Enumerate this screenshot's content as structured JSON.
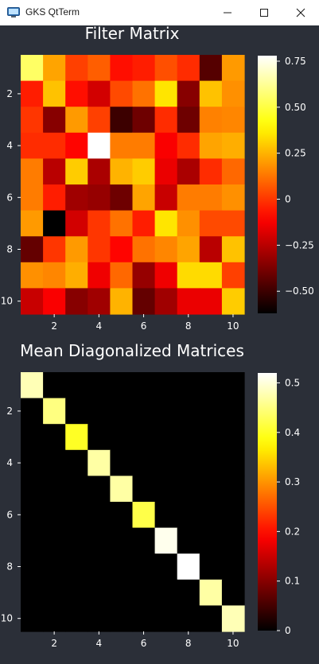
{
  "window": {
    "title": "GKS QtTerm",
    "icons": {
      "app": "terminal-app-icon",
      "minimize": "minimize-icon",
      "maximize": "maximize-icon",
      "close": "close-icon"
    }
  },
  "chart_data": [
    {
      "type": "heatmap",
      "title": "Filter Matrix",
      "xlabel": "",
      "ylabel": "",
      "x_ticks": [
        "2",
        "4",
        "6",
        "8",
        "10"
      ],
      "y_ticks": [
        "2",
        "4",
        "6",
        "8",
        "10"
      ],
      "colormap": "hot",
      "colorbar": {
        "min": -0.62,
        "max": 0.78,
        "ticks": [
          -0.5,
          -0.25,
          0,
          0.25,
          0.5,
          0.75
        ],
        "tick_labels": [
          "−0.50",
          "−0.25",
          "0",
          "0.25",
          "0.50",
          "0.75"
        ]
      },
      "matrix": [
        [
          0.55,
          0.22,
          0.02,
          0.08,
          -0.08,
          -0.05,
          0.05,
          -0.02,
          -0.45,
          0.2
        ],
        [
          -0.05,
          0.28,
          -0.08,
          -0.2,
          0.04,
          0.12,
          0.35,
          -0.35,
          0.28,
          0.18
        ],
        [
          0.0,
          -0.35,
          0.2,
          0.02,
          -0.5,
          -0.4,
          -0.02,
          -0.4,
          0.15,
          0.16
        ],
        [
          -0.02,
          -0.02,
          -0.1,
          0.78,
          0.14,
          0.14,
          -0.12,
          -0.02,
          0.22,
          0.24
        ],
        [
          0.14,
          -0.25,
          0.3,
          -0.28,
          0.25,
          0.3,
          -0.15,
          -0.28,
          -0.02,
          0.1
        ],
        [
          0.14,
          -0.05,
          -0.3,
          -0.32,
          -0.4,
          0.22,
          -0.22,
          0.14,
          0.14,
          0.18
        ],
        [
          0.2,
          -0.62,
          -0.2,
          0.0,
          0.12,
          -0.05,
          0.35,
          0.18,
          0.04,
          0.04
        ],
        [
          -0.42,
          0.0,
          0.2,
          0.0,
          -0.1,
          0.12,
          0.16,
          0.22,
          -0.25,
          0.28
        ],
        [
          0.18,
          0.16,
          0.24,
          -0.14,
          0.1,
          -0.32,
          -0.14,
          0.33,
          0.33,
          0.02
        ],
        [
          -0.22,
          -0.12,
          -0.35,
          -0.3,
          0.25,
          -0.42,
          -0.3,
          -0.15,
          -0.15,
          0.3
        ]
      ]
    },
    {
      "type": "heatmap",
      "title": "Mean Diagonalized Matrices",
      "xlabel": "",
      "ylabel": "",
      "x_ticks": [
        "2",
        "4",
        "6",
        "8",
        "10"
      ],
      "y_ticks": [
        "2",
        "4",
        "6",
        "8",
        "10"
      ],
      "colormap": "hot",
      "colorbar": {
        "min": 0,
        "max": 0.52,
        "ticks": [
          0,
          0.1,
          0.2,
          0.3,
          0.4,
          0.5
        ],
        "tick_labels": [
          "0",
          "0.1",
          "0.2",
          "0.3",
          "0.4",
          "0.5"
        ]
      },
      "diagonal": [
        0.48,
        0.45,
        0.4,
        0.47,
        0.47,
        0.42,
        0.51,
        0.52,
        0.47,
        0.48
      ]
    }
  ]
}
